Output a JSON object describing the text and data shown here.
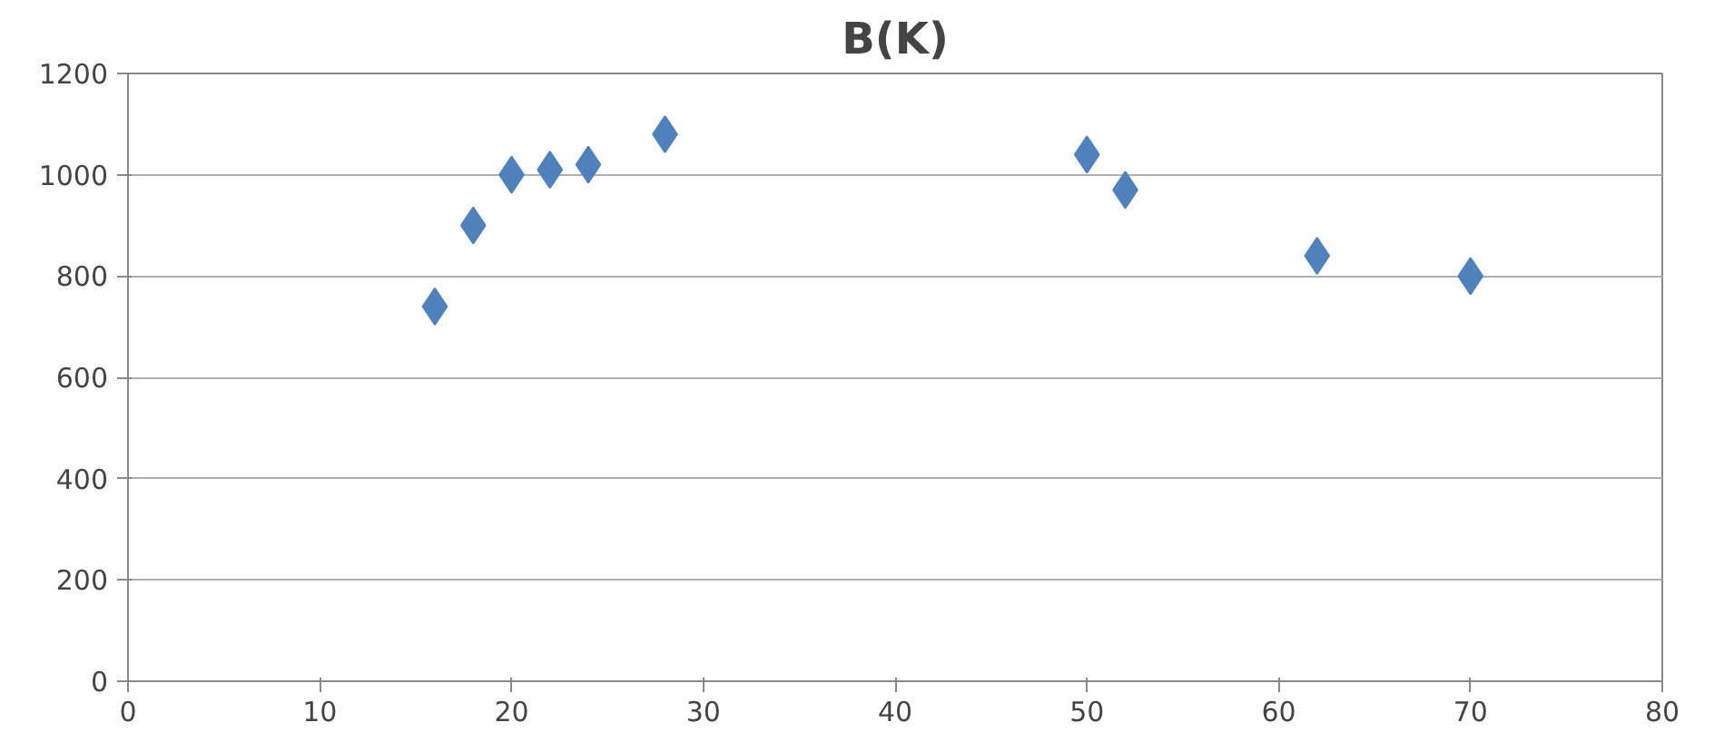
{
  "chart_data": {
    "type": "scatter",
    "title": "B(K)",
    "x": [
      16,
      18,
      20,
      22,
      24,
      28,
      50,
      52,
      62,
      70
    ],
    "series": [
      {
        "color": "#4f81bd",
        "values": [
          740,
          900,
          1000,
          1010,
          1020,
          1080,
          1040,
          970,
          840,
          800
        ]
      }
    ],
    "xlim": [
      0,
      80
    ],
    "xticks": [
      0,
      10,
      20,
      30,
      40,
      50,
      60,
      70,
      80
    ],
    "ylim": [
      0,
      1200
    ],
    "yticks": [
      0,
      200,
      400,
      600,
      800,
      1000,
      1200
    ],
    "grid": "y",
    "marker": "diamond"
  }
}
